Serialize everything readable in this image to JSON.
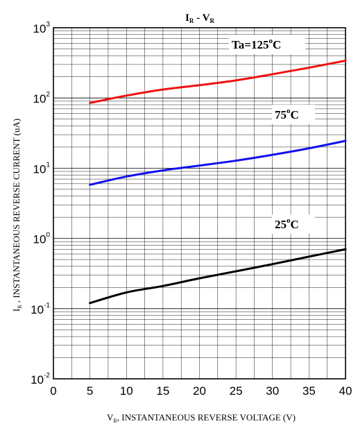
{
  "chart_data": {
    "type": "line",
    "title": {
      "main_a": "I",
      "sub_a": "R",
      "dash": " - ",
      "main_b": "V",
      "sub_b": "R"
    },
    "xlabel": {
      "sym": "V",
      "sub": "R",
      "text": ", INSTANTANEOUS REVERSE VOLTAGE (V)"
    },
    "ylabel": {
      "sym": "I",
      "sub": "R",
      "text": " , INSTANTANEOUS REVERSE CURRENT (uA)"
    },
    "xlim": [
      0,
      40
    ],
    "ylim": [
      0.01,
      1000
    ],
    "yscale": "log",
    "grid": true,
    "x_ticks": [
      0,
      5,
      10,
      15,
      20,
      25,
      30,
      35,
      40
    ],
    "x_tick_labels": [
      "0",
      "5",
      "10",
      "15",
      "20",
      "25",
      "30",
      "35",
      "40"
    ],
    "y_ticks": [
      {
        "value": 0.01,
        "base": "10",
        "exp": "-2"
      },
      {
        "value": 0.1,
        "base": "10",
        "exp": "-1"
      },
      {
        "value": 1,
        "base": "10",
        "exp": "0"
      },
      {
        "value": 10,
        "base": "10",
        "exp": "1"
      },
      {
        "value": 100,
        "base": "10",
        "exp": "2"
      },
      {
        "value": 1000,
        "base": "10",
        "exp": "3"
      }
    ],
    "series": [
      {
        "name": "Ta=125°C",
        "label": {
          "text": "Ta=125",
          "sup": "o",
          "unit": "C"
        },
        "color": "#ee1111",
        "x": [
          5,
          10,
          15,
          20,
          25,
          30,
          35,
          40
        ],
        "y": [
          85,
          108,
          132,
          152,
          178,
          218,
          270,
          340
        ]
      },
      {
        "name": "75°C",
        "label": {
          "text": "75",
          "sup": "o",
          "unit": "C"
        },
        "color": "#1111ee",
        "x": [
          5,
          10,
          15,
          20,
          25,
          30,
          35,
          40
        ],
        "y": [
          5.8,
          7.6,
          9.3,
          10.9,
          12.8,
          15.5,
          19.2,
          24.5
        ]
      },
      {
        "name": "25°C",
        "label": {
          "text": "25",
          "sup": "o",
          "unit": "C"
        },
        "color": "#000000",
        "x": [
          5,
          10,
          15,
          20,
          25,
          30,
          35,
          40
        ],
        "y": [
          0.12,
          0.17,
          0.21,
          0.27,
          0.34,
          0.43,
          0.55,
          0.7
        ]
      }
    ]
  }
}
